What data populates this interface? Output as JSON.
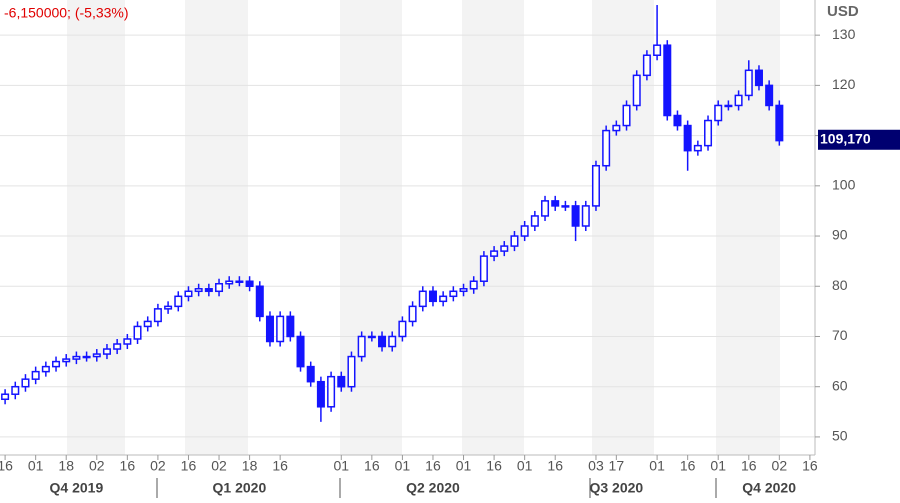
{
  "chart_data": {
    "type": "candlestick",
    "change_text": "-6,150000; (-5,33%)",
    "unit": "USD",
    "last_price": {
      "value": 109.17,
      "label": "109,170"
    },
    "categories": [
      "16",
      null,
      null,
      "01",
      null,
      null,
      "18",
      null,
      null,
      "02",
      null,
      null,
      "16",
      null,
      null,
      "02",
      null,
      null,
      "16",
      null,
      null,
      "02",
      null,
      null,
      "18",
      null,
      null,
      "16",
      null,
      null,
      null,
      null,
      null,
      "01",
      null,
      null,
      "16",
      null,
      null,
      "01",
      null,
      null,
      "16",
      null,
      null,
      "01",
      null,
      null,
      "16",
      null,
      null,
      "01",
      null,
      null,
      "16",
      null,
      null,
      null,
      "03",
      null,
      "17",
      null,
      null,
      null,
      "01",
      null,
      null,
      "16",
      null,
      null,
      "01",
      null,
      null,
      "16",
      null,
      null,
      "02",
      null,
      null,
      "16"
    ],
    "period_categories": [
      null,
      null,
      null,
      null,
      null,
      null,
      null,
      "Q4 2019",
      null,
      null,
      null,
      null,
      null,
      null,
      null,
      null,
      null,
      null,
      null,
      null,
      null,
      null,
      null,
      "Q1 2020",
      null,
      null,
      null,
      null,
      null,
      null,
      null,
      null,
      null,
      null,
      null,
      null,
      null,
      null,
      null,
      null,
      null,
      null,
      "Q2 2020",
      null,
      null,
      null,
      null,
      null,
      null,
      null,
      null,
      null,
      null,
      null,
      null,
      null,
      null,
      null,
      null,
      null,
      "Q3 2020",
      null,
      null,
      null,
      null,
      null,
      null,
      null,
      null,
      null,
      null,
      null,
      null,
      null,
      null,
      "Q4 2020",
      null,
      null,
      null,
      null
    ],
    "open": [
      57.5,
      58.5,
      60,
      61.5,
      63,
      64,
      65,
      65.5,
      66,
      66,
      66.5,
      67.5,
      68.5,
      69.5,
      72,
      73,
      75.5,
      76,
      78,
      79,
      79.5,
      79,
      80.5,
      81,
      81,
      80,
      74,
      69,
      74,
      70,
      64,
      61,
      56,
      62,
      60,
      66,
      70,
      70,
      68,
      70,
      73,
      76,
      79,
      77,
      78,
      79,
      79.5,
      81,
      86,
      87,
      88,
      90,
      92,
      94,
      97,
      96,
      96,
      92,
      96,
      104,
      111,
      112,
      116,
      122,
      126,
      128,
      114,
      112,
      107,
      108,
      113,
      116,
      116,
      118,
      123,
      120,
      116,
      null,
      null,
      null
    ],
    "high": [
      59.5,
      61,
      62.5,
      64,
      65,
      66,
      66.5,
      67,
      67,
      67.5,
      68.5,
      69.5,
      70.5,
      73,
      74,
      76.5,
      77,
      79,
      80,
      80.5,
      80.5,
      81.5,
      82,
      82,
      82,
      81,
      75,
      75,
      75,
      71,
      65,
      62,
      63,
      63,
      67,
      71,
      71,
      71,
      71,
      74,
      77,
      80,
      80,
      79,
      80,
      80.5,
      82,
      87,
      88,
      89,
      91,
      93,
      95,
      98,
      98,
      97,
      97,
      97,
      105,
      112,
      113,
      117,
      123,
      127,
      136,
      129,
      115,
      113,
      109,
      114,
      117,
      117,
      119,
      125,
      124,
      121,
      117,
      null,
      null,
      null
    ],
    "low": [
      56.5,
      57.5,
      59,
      60.5,
      62,
      63,
      64,
      64.5,
      65,
      65,
      65.5,
      66.5,
      67.5,
      68.5,
      71,
      72,
      74.5,
      75,
      77,
      78,
      78,
      78,
      79.5,
      80,
      79,
      73,
      68,
      68,
      69,
      63,
      60,
      53,
      55,
      59,
      59,
      65,
      69,
      67,
      67,
      69,
      72,
      75,
      76,
      76,
      77,
      78,
      78.5,
      80,
      85,
      86,
      87,
      89,
      91,
      93,
      95,
      95,
      89,
      91,
      95,
      103,
      110,
      111,
      115,
      121,
      125,
      113,
      111,
      103,
      106,
      107,
      112,
      115,
      115,
      117,
      119,
      115,
      108,
      null,
      null,
      null
    ],
    "close": [
      58.5,
      60,
      61.5,
      63,
      64,
      65,
      65.5,
      66,
      66,
      66.5,
      67.5,
      68.5,
      69.5,
      72,
      73,
      75.5,
      76,
      78,
      79,
      79.5,
      79,
      80.5,
      81,
      81,
      80,
      74,
      69,
      74,
      70,
      64,
      61,
      56,
      62,
      60,
      66,
      70,
      70,
      68,
      70,
      73,
      76,
      79,
      77,
      78,
      79,
      79.5,
      81,
      86,
      87,
      88,
      90,
      92,
      94,
      97,
      96,
      96,
      92,
      96,
      104,
      111,
      112,
      116,
      122,
      126,
      128,
      114,
      112,
      107,
      108,
      113,
      116,
      116,
      118,
      123,
      120,
      116,
      109,
      null,
      null,
      null
    ],
    "color": "#1414ff",
    "ylim": [
      46.4,
      137
    ],
    "yticks": [
      50,
      60,
      70,
      80,
      90,
      100,
      110,
      120,
      130
    ],
    "grid": true
  }
}
